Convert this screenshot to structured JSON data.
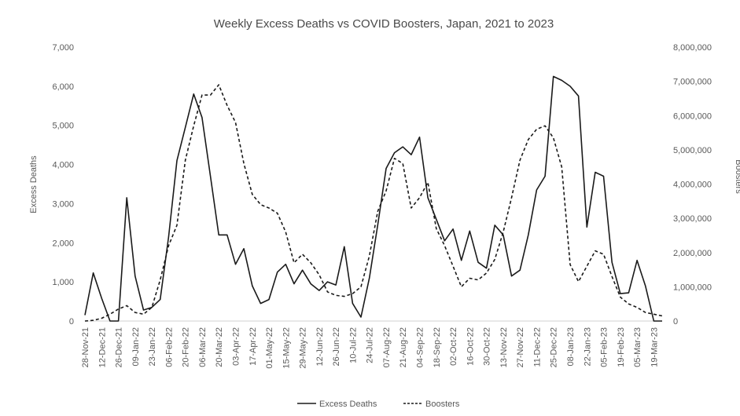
{
  "chart_data": {
    "type": "line",
    "title": "Weekly Excess Deaths vs COVID Boosters, Japan, 2021 to 2023",
    "ylabel": "Excess Deaths",
    "y2label": "Boosters",
    "ylim": [
      0,
      7000
    ],
    "y2lim": [
      0,
      8000000
    ],
    "yticks": [
      "0",
      "1,000",
      "2,000",
      "3,000",
      "4,000",
      "5,000",
      "6,000",
      "7,000"
    ],
    "y2ticks": [
      "0",
      "1,000,000",
      "2,000,000",
      "3,000,000",
      "4,000,000",
      "5,000,000",
      "6,000,000",
      "7,000,000",
      "8,000,000"
    ],
    "xtick_labels": [
      "28-Nov-21",
      "12-Dec-21",
      "26-Dec-21",
      "09-Jan-22",
      "23-Jan-22",
      "06-Feb-22",
      "20-Feb-22",
      "06-Mar-22",
      "20-Mar-22",
      "03-Apr-22",
      "17-Apr-22",
      "01-May-22",
      "15-May-22",
      "29-May-22",
      "12-Jun-22",
      "26-Jun-22",
      "10-Jul-22",
      "24-Jul-22",
      "07-Aug-22",
      "21-Aug-22",
      "04-Sep-22",
      "18-Sep-22",
      "02-Oct-22",
      "16-Oct-22",
      "30-Oct-22",
      "13-Nov-22",
      "27-Nov-22",
      "11-Dec-22",
      "25-Dec-22",
      "08-Jan-23",
      "22-Jan-23",
      "05-Feb-23",
      "19-Feb-23",
      "05-Mar-23",
      "19-Mar-23"
    ],
    "x_start": "28-Nov-21",
    "x_end": "26-Mar-23",
    "grid": false,
    "legend_position": "bottom",
    "series": [
      {
        "name": "Excess Deaths",
        "axis": "left",
        "style": "solid",
        "color": "#1a1a1a",
        "values": [
          150,
          1230,
          580,
          0,
          0,
          3150,
          1150,
          280,
          350,
          550,
          2150,
          4100,
          4950,
          5800,
          5200,
          3700,
          2200,
          2200,
          1450,
          1850,
          900,
          450,
          550,
          1250,
          1450,
          950,
          1300,
          950,
          780,
          1000,
          920,
          1900,
          450,
          100,
          1100,
          2450,
          3900,
          4300,
          4450,
          4250,
          4700,
          3150,
          2600,
          2050,
          2350,
          1550,
          2300,
          1500,
          1350,
          2450,
          2200,
          1150,
          1300,
          2200,
          3350,
          3700,
          6250,
          6150,
          6000,
          5750,
          2400,
          3800,
          3700,
          1500,
          700,
          720,
          1550,
          900,
          0,
          0
        ]
      },
      {
        "name": "Boosters",
        "axis": "right",
        "style": "dashed",
        "color": "#1a1a1a",
        "values": [
          0,
          20000,
          80000,
          200000,
          350000,
          450000,
          250000,
          200000,
          400000,
          1200000,
          2200000,
          2800000,
          4700000,
          5700000,
          6600000,
          6600000,
          6900000,
          6300000,
          5800000,
          4600000,
          3700000,
          3400000,
          3300000,
          3150000,
          2600000,
          1700000,
          1950000,
          1700000,
          1350000,
          850000,
          750000,
          720000,
          800000,
          1000000,
          1900000,
          3200000,
          3800000,
          4750000,
          4600000,
          3300000,
          3600000,
          4050000,
          2700000,
          2200000,
          1600000,
          1000000,
          1250000,
          1200000,
          1400000,
          1800000,
          2600000,
          3600000,
          4700000,
          5300000,
          5600000,
          5700000,
          5350000,
          4500000,
          1650000,
          1150000,
          1600000,
          2050000,
          1950000,
          1300000,
          700000,
          500000,
          400000,
          250000,
          200000,
          150000
        ]
      }
    ]
  }
}
